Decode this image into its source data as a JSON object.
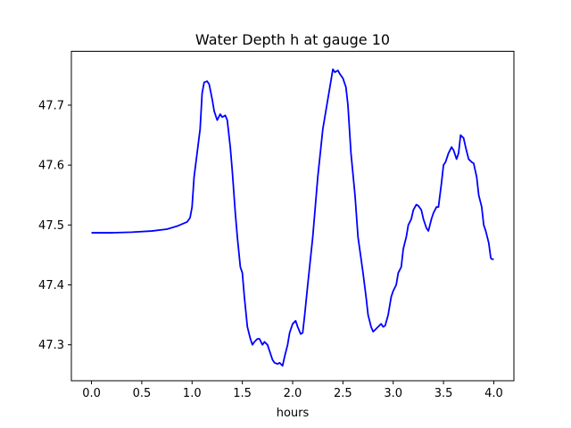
{
  "chart_data": {
    "type": "line",
    "title": "Water Depth h at gauge 10",
    "xlabel": "hours",
    "ylabel": "",
    "xlim": [
      -0.2,
      4.2
    ],
    "ylim": [
      47.24,
      47.79
    ],
    "xticks": [
      0.0,
      0.5,
      1.0,
      1.5,
      2.0,
      2.5,
      3.0,
      3.5,
      4.0
    ],
    "xtick_labels": [
      "0.0",
      "0.5",
      "1.0",
      "1.5",
      "2.0",
      "2.5",
      "3.0",
      "3.5",
      "4.0"
    ],
    "yticks": [
      47.3,
      47.4,
      47.5,
      47.6,
      47.7
    ],
    "ytick_labels": [
      "47.3",
      "47.4",
      "47.5",
      "47.6",
      "47.7"
    ],
    "grid": false,
    "series": [
      {
        "name": "",
        "color": "#0000ff",
        "x": [
          0.0,
          0.2,
          0.4,
          0.6,
          0.75,
          0.85,
          0.95,
          0.98,
          1.0,
          1.02,
          1.05,
          1.08,
          1.1,
          1.12,
          1.15,
          1.17,
          1.2,
          1.22,
          1.25,
          1.28,
          1.3,
          1.33,
          1.35,
          1.38,
          1.4,
          1.43,
          1.45,
          1.48,
          1.5,
          1.52,
          1.55,
          1.58,
          1.6,
          1.62,
          1.65,
          1.67,
          1.7,
          1.72,
          1.75,
          1.77,
          1.8,
          1.82,
          1.85,
          1.87,
          1.9,
          1.92,
          1.95,
          1.97,
          2.0,
          2.03,
          2.05,
          2.08,
          2.1,
          2.12,
          2.15,
          2.2,
          2.25,
          2.3,
          2.35,
          2.38,
          2.4,
          2.42,
          2.45,
          2.47,
          2.5,
          2.53,
          2.55,
          2.58,
          2.62,
          2.65,
          2.7,
          2.73,
          2.75,
          2.78,
          2.8,
          2.82,
          2.85,
          2.88,
          2.9,
          2.92,
          2.95,
          2.98,
          3.0,
          3.03,
          3.05,
          3.08,
          3.1,
          3.13,
          3.15,
          3.18,
          3.2,
          3.23,
          3.25,
          3.28,
          3.3,
          3.33,
          3.35,
          3.38,
          3.4,
          3.43,
          3.45,
          3.48,
          3.5,
          3.52,
          3.55,
          3.58,
          3.6,
          3.63,
          3.65,
          3.67,
          3.7,
          3.72,
          3.75,
          3.78,
          3.8,
          3.83,
          3.85,
          3.88,
          3.9,
          3.92,
          3.95,
          3.97,
          3.98,
          4.0
        ],
        "y": [
          47.487,
          47.487,
          47.488,
          47.49,
          47.493,
          47.498,
          47.505,
          47.512,
          47.53,
          47.58,
          47.62,
          47.66,
          47.72,
          47.738,
          47.74,
          47.735,
          47.71,
          47.69,
          47.675,
          47.685,
          47.68,
          47.683,
          47.675,
          47.63,
          47.59,
          47.52,
          47.48,
          47.43,
          47.42,
          47.38,
          47.33,
          47.31,
          47.3,
          47.305,
          47.31,
          47.31,
          47.3,
          47.305,
          47.3,
          47.29,
          47.275,
          47.27,
          47.268,
          47.27,
          47.265,
          47.28,
          47.3,
          47.32,
          47.335,
          47.34,
          47.33,
          47.318,
          47.32,
          47.35,
          47.4,
          47.48,
          47.58,
          47.66,
          47.71,
          47.74,
          47.76,
          47.755,
          47.758,
          47.752,
          47.745,
          47.73,
          47.7,
          47.62,
          47.55,
          47.48,
          47.42,
          47.38,
          47.35,
          47.33,
          47.322,
          47.325,
          47.33,
          47.335,
          47.33,
          47.332,
          47.35,
          47.38,
          47.39,
          47.4,
          47.42,
          47.43,
          47.46,
          47.48,
          47.5,
          47.51,
          47.525,
          47.534,
          47.532,
          47.525,
          47.51,
          47.495,
          47.49,
          47.51,
          47.52,
          47.53,
          47.53,
          47.57,
          47.6,
          47.605,
          47.62,
          47.63,
          47.625,
          47.61,
          47.62,
          47.65,
          47.645,
          47.63,
          47.61,
          47.605,
          47.603,
          47.58,
          47.55,
          47.53,
          47.5,
          47.49,
          47.47,
          47.445,
          47.443,
          47.443
        ]
      }
    ]
  }
}
